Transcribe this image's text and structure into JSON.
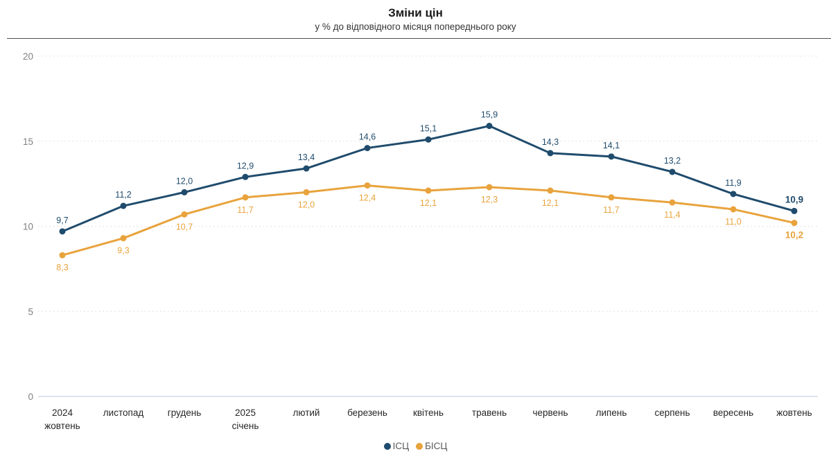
{
  "header": {
    "title": "Зміни цін",
    "subtitle": "у % до відповідного місяця попереднього року"
  },
  "chart_data": {
    "type": "line",
    "title": "Зміни цін",
    "subtitle": "у % до відповідного місяця попереднього року",
    "categories": [
      [
        "2024",
        "жовтень"
      ],
      "листопад",
      "грудень",
      [
        "2025",
        "січень"
      ],
      "лютий",
      "березень",
      "квітень",
      "травень",
      "червень",
      "липень",
      "серпень",
      "вересень",
      "жовтень"
    ],
    "series": [
      {
        "name": "ІСЦ",
        "color": "#1f4b6c",
        "label_position": "above",
        "values": [
          9.7,
          11.2,
          12.0,
          12.9,
          13.4,
          14.6,
          15.1,
          15.9,
          14.3,
          14.1,
          13.2,
          11.9,
          10.9
        ]
      },
      {
        "name": "БІСЦ",
        "color": "#e8a33c",
        "label_position": "below",
        "values": [
          8.3,
          9.3,
          10.7,
          11.7,
          12.0,
          12.4,
          12.1,
          12.3,
          12.1,
          11.7,
          11.4,
          11.0,
          10.2
        ]
      }
    ],
    "ylim": [
      0,
      20
    ],
    "yticks": [
      0,
      5,
      10,
      15,
      20
    ],
    "xlabel": "",
    "ylabel": "",
    "grid": "dotted-horizontal",
    "gridline_color": "#d9d9d9",
    "baseline_color": "#dbe5f1",
    "axis_tick_color": "#7f7f7f",
    "category_label_color": "#262626",
    "legend_position": "bottom-center",
    "emphasize_last_label": true,
    "decimal_separator": ","
  }
}
